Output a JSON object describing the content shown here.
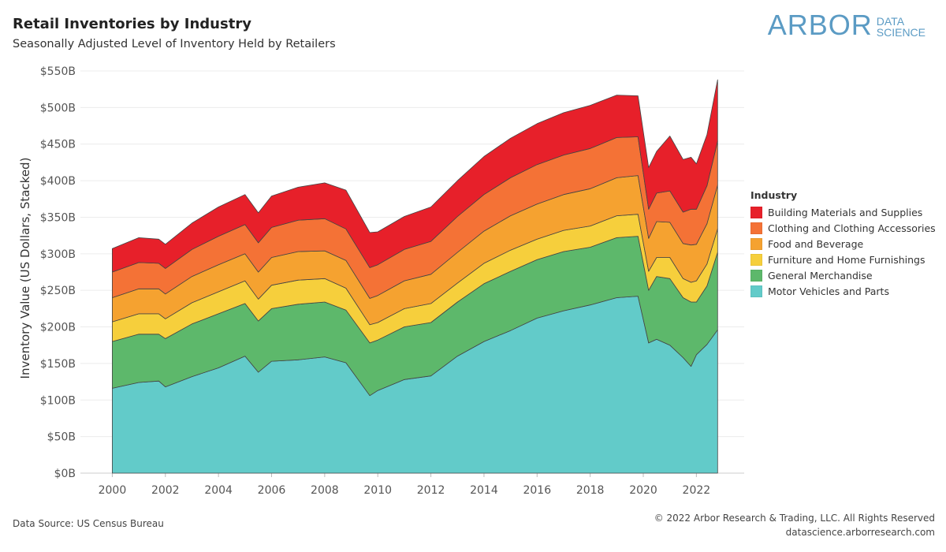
{
  "header": {
    "title": "Retail Inventories by Industry",
    "subtitle": "Seasonally Adjusted Level of Inventory Held by Retailers"
  },
  "logo": {
    "word": "ARBOR",
    "line1": "DATA",
    "line2": "SCIENCE"
  },
  "footer": {
    "source": "Data Source: US Census Bureau",
    "copyright": "© 2022 Arbor Research & Trading, LLC. All Rights Reserved",
    "website": "datascience.arborresearch.com"
  },
  "legend": {
    "title": "Industry"
  },
  "chart_data": {
    "type": "area",
    "stacked": true,
    "ylabel": "Inventory Value (US Dollars, Stacked)",
    "xlabel": "",
    "ylim": [
      0,
      550
    ],
    "y_ticks": [
      0,
      50,
      100,
      150,
      200,
      250,
      300,
      350,
      400,
      450,
      500,
      550
    ],
    "y_tick_labels": [
      "$0B",
      "$50B",
      "$100B",
      "$150B",
      "$200B",
      "$250B",
      "$300B",
      "$350B",
      "$400B",
      "$450B",
      "$500B",
      "$550B"
    ],
    "xlim": [
      1998.8,
      2023.8
    ],
    "x_ticks": [
      2000,
      2002,
      2004,
      2006,
      2008,
      2010,
      2012,
      2014,
      2016,
      2018,
      2020,
      2022
    ],
    "x_tick_labels": [
      "2000",
      "2002",
      "2004",
      "2006",
      "2008",
      "2010",
      "2012",
      "2014",
      "2016",
      "2018",
      "2020",
      "2022"
    ],
    "grid": true,
    "legend_position": "right",
    "x": [
      2000.0,
      2001.0,
      2001.75,
      2002.0,
      2003.0,
      2004.0,
      2005.0,
      2005.5,
      2006.0,
      2007.0,
      2008.0,
      2008.8,
      2009.7,
      2010.0,
      2011.0,
      2012.0,
      2013.0,
      2014.0,
      2015.0,
      2016.0,
      2017.0,
      2018.0,
      2019.0,
      2019.8,
      2020.2,
      2020.5,
      2021.0,
      2021.5,
      2021.8,
      2022.0,
      2022.4,
      2022.8
    ],
    "series": [
      {
        "name": "Motor Vehicles and Parts",
        "color": "#62cbc9",
        "values": [
          116,
          124,
          126,
          118,
          132,
          144,
          160,
          138,
          153,
          155,
          159,
          151,
          106,
          113,
          128,
          133,
          160,
          180,
          195,
          212,
          222,
          230,
          240,
          242,
          178,
          183,
          175,
          158,
          146,
          162,
          176,
          196
        ]
      },
      {
        "name": "General Merchandise",
        "color": "#5db86b",
        "values": [
          64,
          66,
          64,
          66,
          72,
          74,
          72,
          70,
          72,
          76,
          75,
          72,
          72,
          69,
          72,
          73,
          74,
          79,
          81,
          80,
          81,
          79,
          82,
          82,
          72,
          86,
          91,
          82,
          88,
          72,
          80,
          106
        ]
      },
      {
        "name": "Furniture and Home Furnishings",
        "color": "#f6cf3c",
        "values": [
          27,
          28,
          28,
          27,
          29,
          30,
          31,
          30,
          32,
          33,
          32,
          30,
          25,
          24,
          25,
          26,
          26,
          28,
          29,
          28,
          29,
          29,
          30,
          30,
          26,
          26,
          29,
          26,
          27,
          29,
          30,
          32
        ]
      },
      {
        "name": "Food and Beverage",
        "color": "#f5a230",
        "values": [
          33,
          34,
          34,
          34,
          36,
          37,
          37,
          37,
          38,
          39,
          38,
          38,
          36,
          37,
          38,
          40,
          42,
          44,
          47,
          48,
          49,
          51,
          52,
          53,
          45,
          49,
          48,
          48,
          51,
          50,
          55,
          60
        ]
      },
      {
        "name": "Clothing and Clothing Accessories",
        "color": "#f47236",
        "values": [
          35,
          36,
          35,
          35,
          37,
          39,
          40,
          40,
          41,
          43,
          44,
          43,
          42,
          42,
          43,
          45,
          49,
          50,
          52,
          54,
          54,
          55,
          55,
          53,
          40,
          39,
          43,
          43,
          49,
          48,
          52,
          60
        ]
      },
      {
        "name": "Building Materials and Supplies",
        "color": "#e7202a",
        "values": [
          32,
          34,
          33,
          33,
          36,
          40,
          41,
          41,
          43,
          45,
          49,
          53,
          48,
          45,
          45,
          47,
          49,
          52,
          54,
          56,
          58,
          59,
          58,
          56,
          57,
          57,
          75,
          72,
          71,
          62,
          70,
          84
        ]
      }
    ]
  }
}
